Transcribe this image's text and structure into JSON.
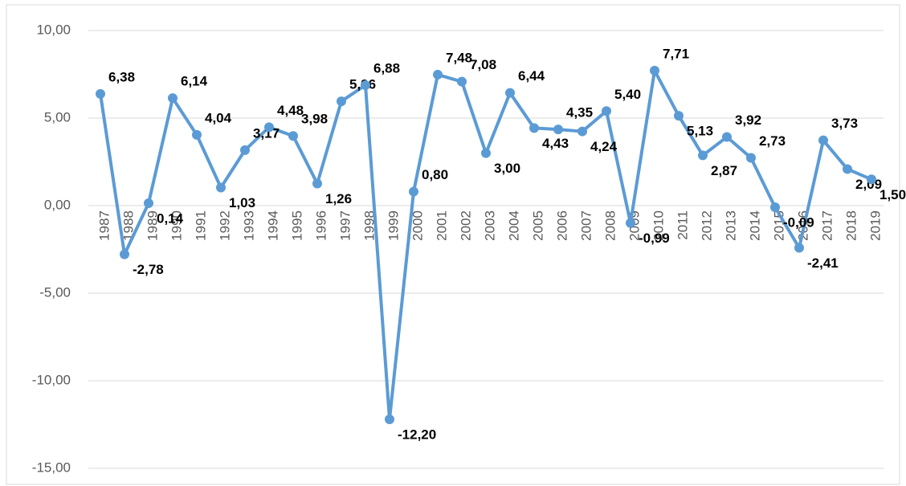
{
  "chart_data": {
    "type": "line",
    "categories": [
      "1987",
      "1988",
      "1989",
      "1990",
      "1991",
      "1992",
      "1993",
      "1994",
      "1995",
      "1996",
      "1997",
      "1998",
      "1999",
      "2000",
      "2001",
      "2002",
      "2003",
      "2004",
      "2005",
      "2006",
      "2007",
      "2008",
      "2009",
      "2010",
      "2011",
      "2012",
      "2013",
      "2014",
      "2015",
      "2016",
      "2017",
      "2018",
      "2019"
    ],
    "series": [
      {
        "color": "#5b9bd5",
        "values": [
          6.38,
          -2.78,
          0.14,
          6.14,
          4.04,
          1.03,
          3.17,
          4.48,
          3.98,
          1.26,
          5.96,
          6.88,
          -12.2,
          0.8,
          7.48,
          7.08,
          3.0,
          6.44,
          4.43,
          4.35,
          4.24,
          5.4,
          -0.99,
          7.71,
          5.13,
          2.87,
          3.92,
          2.73,
          -0.09,
          -2.41,
          3.73,
          2.09,
          1.5
        ],
        "value_labels": [
          "6,38",
          "-2,78",
          "0,14",
          "6,14",
          "4,04",
          "1,03",
          "3,17",
          "4,48",
          "3,98",
          "1,26",
          "5,96",
          "6,88",
          "-12,20",
          "0,80",
          "7,48",
          "7,08",
          "3,00",
          "6,44",
          "4,43",
          "4,35",
          "4,24",
          "5,40",
          "-0,99",
          "7,71",
          "5,13",
          "2,87",
          "3,92",
          "2,73",
          "-0,09",
          "-2,41",
          "3,73",
          "2,09",
          "1,50"
        ]
      }
    ],
    "ylim": [
      -15,
      10
    ],
    "yticks": [
      {
        "value": -15,
        "label": "-15,00"
      },
      {
        "value": -10,
        "label": "-10,00"
      },
      {
        "value": -5,
        "label": "-5,00"
      },
      {
        "value": 0,
        "label": "0,00"
      },
      {
        "value": 5,
        "label": "5,00"
      },
      {
        "value": 10,
        "label": "10,00"
      }
    ],
    "grid": true
  }
}
